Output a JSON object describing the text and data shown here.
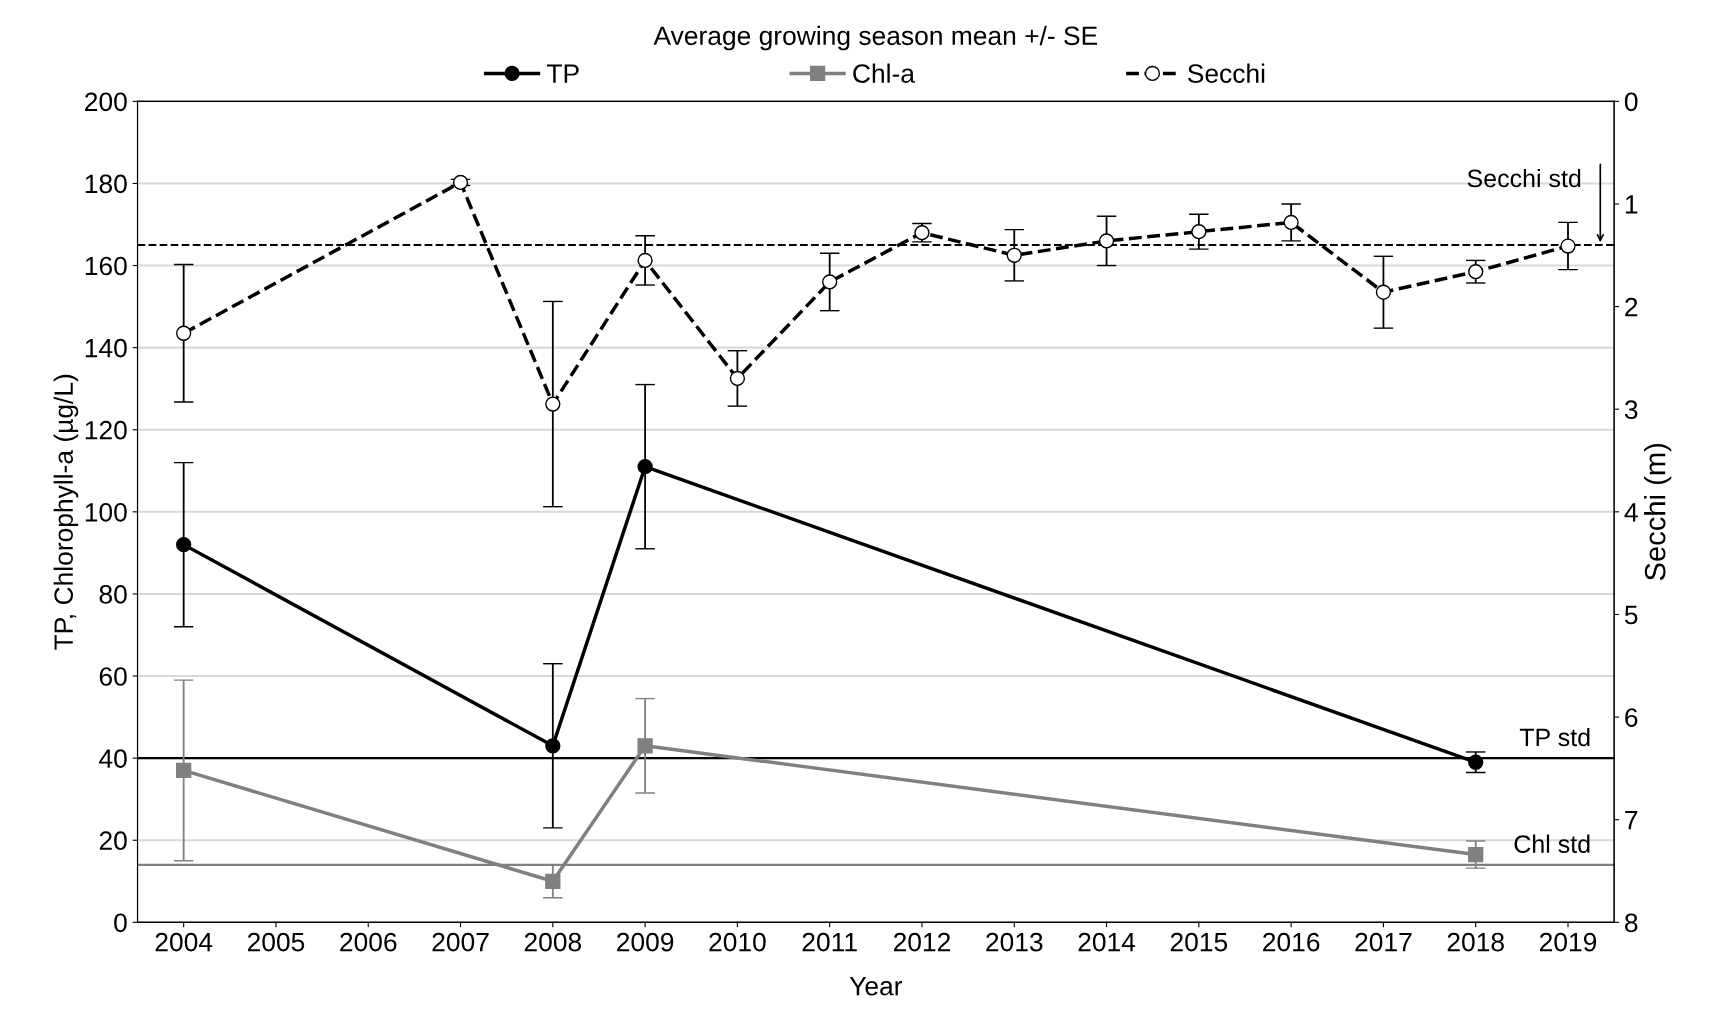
{
  "chart_data": {
    "type": "line",
    "legend_title": "Average growing season mean +/- SE",
    "xlabel": "Year",
    "ylabel": "TP, Chlorophyll-a (µg/L)",
    "y2label": "Secchi (m)",
    "xlim": [
      2003.5,
      2019.5
    ],
    "xticks": [
      2004,
      2005,
      2006,
      2007,
      2008,
      2009,
      2010,
      2011,
      2012,
      2013,
      2014,
      2015,
      2016,
      2017,
      2018,
      2019
    ],
    "ylim": [
      0,
      200
    ],
    "yticks": [
      0,
      20,
      40,
      60,
      80,
      100,
      120,
      140,
      160,
      180,
      200
    ],
    "y2lim": [
      8,
      0
    ],
    "y2ticks": [
      0,
      1,
      2,
      3,
      4,
      5,
      6,
      7,
      8
    ],
    "grid": "y",
    "legend": "top",
    "series": [
      {
        "name": "TP",
        "color": "#000000",
        "marker": "circle",
        "line_style": "solid",
        "x": [
          2004,
          2008,
          2009,
          2018
        ],
        "values": [
          92,
          43,
          111,
          39
        ],
        "errors": [
          20,
          20,
          20,
          2.5
        ]
      },
      {
        "name": "Chl-a",
        "color": "#808080",
        "marker": "square",
        "line_style": "solid",
        "x": [
          2004,
          2008,
          2009,
          2018
        ],
        "values": [
          37,
          10,
          43,
          16.5
        ],
        "errors": [
          22,
          4,
          11.5,
          3.3
        ]
      },
      {
        "name": "Secchi",
        "color": "#000000",
        "marker": "circle",
        "line_style": "dashed",
        "axis": "y2",
        "x": [
          2004,
          2007,
          2008,
          2009,
          2010,
          2011,
          2012,
          2013,
          2014,
          2015,
          2016,
          2017,
          2018,
          2019
        ],
        "values": [
          2.26,
          0.79,
          2.95,
          1.55,
          2.7,
          1.76,
          1.28,
          1.5,
          1.36,
          1.27,
          1.18,
          1.86,
          1.66,
          1.41
        ],
        "errors": [
          0.67,
          0.03,
          1.0,
          0.24,
          0.27,
          0.28,
          0.09,
          0.25,
          0.24,
          0.17,
          0.18,
          0.35,
          0.11,
          0.23
        ]
      }
    ],
    "ref_lines": [
      {
        "axis": "y",
        "value": 40,
        "label": "TP std",
        "color": "#000000",
        "line_style": "solid"
      },
      {
        "axis": "y",
        "value": 14,
        "label": "Chl std",
        "color": "#808080",
        "line_style": "solid"
      },
      {
        "axis": "y2",
        "value": 1.4,
        "label": "Secchi std",
        "color": "#000000",
        "line_style": "dashed"
      }
    ]
  }
}
